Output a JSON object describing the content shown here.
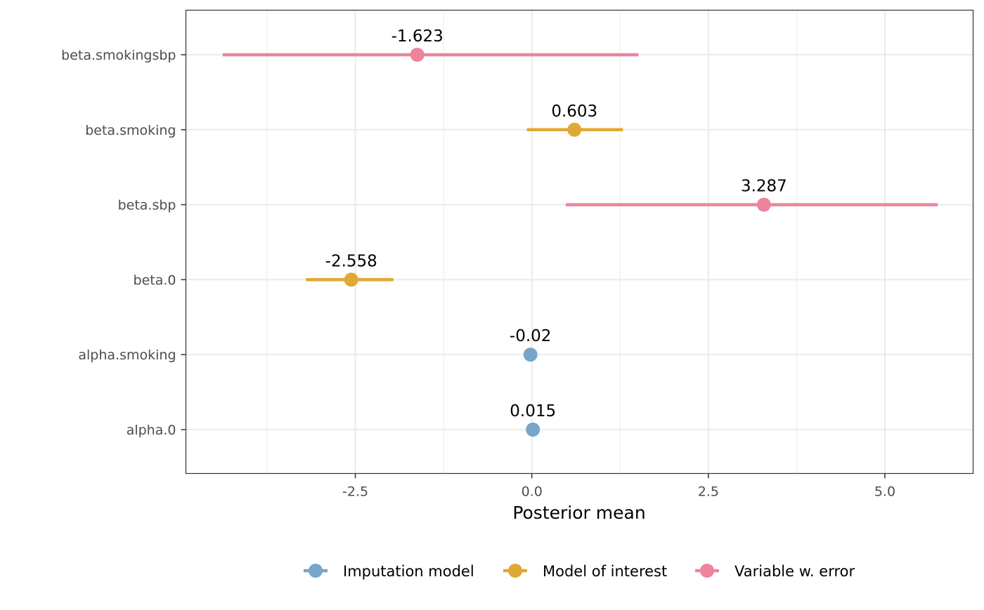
{
  "chart_data": {
    "type": "dot-interval",
    "title": "",
    "xlabel": "Posterior mean",
    "ylabel": "",
    "xlim": [
      -4.9,
      6.25
    ],
    "x_ticks": [
      -2.5,
      0.0,
      2.5,
      5.0
    ],
    "x_tick_labels": [
      "-2.5",
      "0.0",
      "2.5",
      "5.0"
    ],
    "grid": true,
    "legend_position": "bottom",
    "colors": {
      "Imputation model": "#77a6ca",
      "Model of interest": "#e0a935",
      "Variable w. error": "#ed849c"
    },
    "categories": [
      "beta.smokingsbp",
      "beta.smoking",
      "beta.sbp",
      "beta.0",
      "alpha.smoking",
      "alpha.0"
    ],
    "points": [
      {
        "name": "beta.smokingsbp",
        "group": "Variable w. error",
        "mean": -1.623,
        "lower": -4.38,
        "upper": 1.51,
        "label": "-1.623"
      },
      {
        "name": "beta.smoking",
        "group": "Model of interest",
        "mean": 0.603,
        "lower": -0.07,
        "upper": 1.29,
        "label": "0.603"
      },
      {
        "name": "beta.sbp",
        "group": "Variable w. error",
        "mean": 3.287,
        "lower": 0.48,
        "upper": 5.75,
        "label": "3.287"
      },
      {
        "name": "beta.0",
        "group": "Model of interest",
        "mean": -2.558,
        "lower": -3.2,
        "upper": -1.96,
        "label": "-2.558"
      },
      {
        "name": "alpha.smoking",
        "group": "Imputation model",
        "mean": -0.02,
        "lower": -0.03,
        "upper": -0.01,
        "label": "-0.02"
      },
      {
        "name": "alpha.0",
        "group": "Imputation model",
        "mean": 0.015,
        "lower": 0.005,
        "upper": 0.025,
        "label": "0.015"
      }
    ],
    "legend": [
      "Imputation model",
      "Model of interest",
      "Variable w. error"
    ]
  }
}
